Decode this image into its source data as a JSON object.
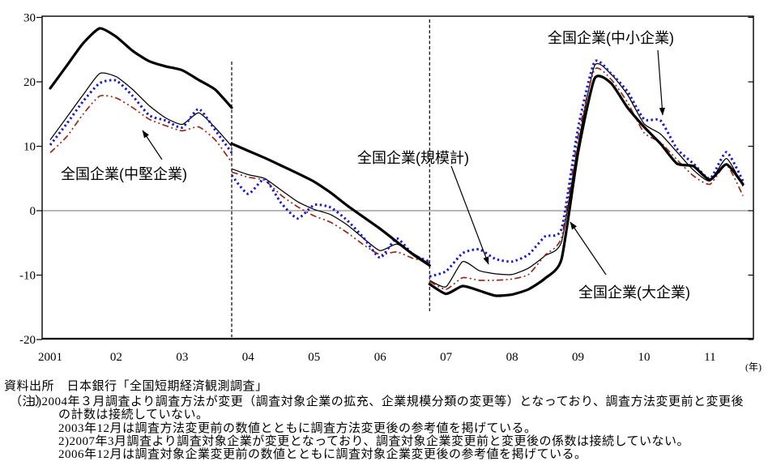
{
  "source_note": {
    "line1": "資料出所　日本銀行「全国短期経済観測調査」",
    "note_label": "（注）",
    "note1a": "1)2004年３月調査より調査方法が変更（調査対象企業の拡充、企業規模分類の変更等）となっており、調査方法変更前と変更後",
    "note1b": "の計数は接続していない。",
    "note1c": "2003年12月は調査方法変更前の数値とともに調査方法変更後の参考値を掲げている。",
    "note2a": "2)2007年3月調査より調査対象企業が変更となっており、調査対象企業変更前と変更後の係数は接続していない。",
    "note2b": "2006年12月は調査対象企業変更前の数値とともに調査対象企業変更後の参考値を掲げている。"
  },
  "chart_data": {
    "type": "line",
    "title": "",
    "xlabel": "(年)",
    "ylabel": "",
    "ylim": [
      -20,
      30
    ],
    "grid": "zero-line-only",
    "x_start_year": 2001,
    "points_per_year": 4,
    "y_tick_values": [
      30,
      20,
      10,
      0,
      -10,
      -20
    ],
    "y_ticks": [
      "30",
      "20",
      "10",
      "0",
      "-10",
      "-20"
    ],
    "x_tick_years": [
      2001,
      2002,
      2003,
      2004,
      2005,
      2006,
      2007,
      2008,
      2009,
      2010,
      2011
    ],
    "x_ticks": [
      "2001",
      "02",
      "03",
      "04",
      "05",
      "06",
      "07",
      "08",
      "09",
      "10",
      "11"
    ],
    "break_indices": [
      11,
      23
    ],
    "break_notes": [
      "2003年12月 調査方法変更",
      "2006年12月 調査対象企業変更"
    ],
    "zero_line_color": "#707070",
    "series": [
      {
        "name": "全国企業(規模計)",
        "key": "all",
        "color": "#000000",
        "style": "solid-thin",
        "segments": [
          {
            "start": 0,
            "values": [
              11,
              14.5,
              18,
              21.3,
              20.8,
              18.8,
              16.3,
              14.4,
              13.4,
              15.2,
              12.9,
              10
            ]
          },
          {
            "start": 11,
            "values": [
              6.5,
              5.6,
              5.0,
              3.2,
              1.4,
              0.2,
              -0.6,
              -2.2,
              -4.3,
              -6.2,
              -5.2,
              -6.6,
              -8.3
            ]
          },
          {
            "start": 23,
            "values": [
              -10.8,
              -11.8,
              -7.9,
              -9.3,
              -9.8,
              -9.9,
              -8.9,
              -7.0,
              -4.8,
              10.2,
              22.5,
              21.2,
              18,
              13.5,
              11.9,
              9.1,
              6.3,
              4.6,
              8.1,
              3.8
            ]
          }
        ]
      },
      {
        "name": "全国企業(中堅企業)",
        "key": "medium",
        "color": "#97281a",
        "style": "dash-dot",
        "segments": [
          {
            "start": 0,
            "values": [
              9,
              11.5,
              15,
              17.8,
              17.5,
              16,
              14.2,
              13.2,
              12.4,
              13,
              11,
              7.5
            ]
          },
          {
            "start": 11,
            "values": [
              6.0,
              5.2,
              4.7,
              2.4,
              0.6,
              -0.8,
              -1.8,
              -3.4,
              -5.3,
              -6.8,
              -6.4,
              -7.4,
              -8.0
            ]
          },
          {
            "start": 23,
            "values": [
              -11.0,
              -12.2,
              -10.4,
              -10.8,
              -10.8,
              -10.6,
              -9.9,
              -6.9,
              -4.1,
              11.5,
              21.9,
              20.4,
              16.8,
              12.1,
              10.6,
              7.9,
              5.4,
              4.1,
              7.1,
              2.3
            ]
          }
        ]
      },
      {
        "name": "全国企業(中小企業)",
        "key": "small",
        "color": "#1a1acb",
        "style": "dotted",
        "segments": [
          {
            "start": 0,
            "values": [
              10.2,
              13.5,
              17,
              19.8,
              20.2,
              17.8,
              14.8,
              14,
              12.9,
              15.8,
              12.5,
              9
            ]
          },
          {
            "start": 11,
            "values": [
              5.5,
              2.6,
              4.9,
              1.2,
              -1.2,
              0.9,
              0.5,
              -1.5,
              -4.2,
              -7.3,
              -4.3,
              -6.8,
              -7.9
            ]
          },
          {
            "start": 23,
            "values": [
              -10.2,
              -9.4,
              -6.6,
              -6.0,
              -7.5,
              -7.9,
              -6.8,
              -4.0,
              -2.8,
              12.8,
              23.1,
              21.3,
              18.5,
              14.2,
              14.0,
              9.6,
              7.3,
              5.0,
              9.1,
              4.6
            ]
          }
        ]
      },
      {
        "name": "全国企業(大企業)",
        "key": "large",
        "color": "#000000",
        "style": "solid-thick",
        "segments": [
          {
            "start": 0,
            "values": [
              19,
              22.5,
              26,
              28.3,
              27,
              24.8,
              23.2,
              22.4,
              21.8,
              20.3,
              18.8,
              16
            ]
          },
          {
            "start": 11,
            "values": [
              10.4,
              9.3,
              8.2,
              7.0,
              5.8,
              4.5,
              2.8,
              0.8,
              -1.0,
              -2.8,
              -4.8,
              -6.8,
              -8.5
            ]
          },
          {
            "start": 23,
            "values": [
              -11.4,
              -12.9,
              -11.7,
              -12.4,
              -13.2,
              -13.0,
              -12.2,
              -10.5,
              -7.5,
              9,
              20.5,
              19.8,
              16,
              13,
              10.4,
              7.3,
              6.9,
              4.8,
              7.2,
              4.1
            ]
          }
        ]
      }
    ],
    "annotations": [
      {
        "text": "全国企業(中堅企業)",
        "series": "medium"
      },
      {
        "text": "全国企業(規模計)",
        "series": "all"
      },
      {
        "text": "全国企業(中小企業)",
        "series": "small"
      },
      {
        "text": "全国企業(大企業)",
        "series": "large"
      }
    ]
  }
}
